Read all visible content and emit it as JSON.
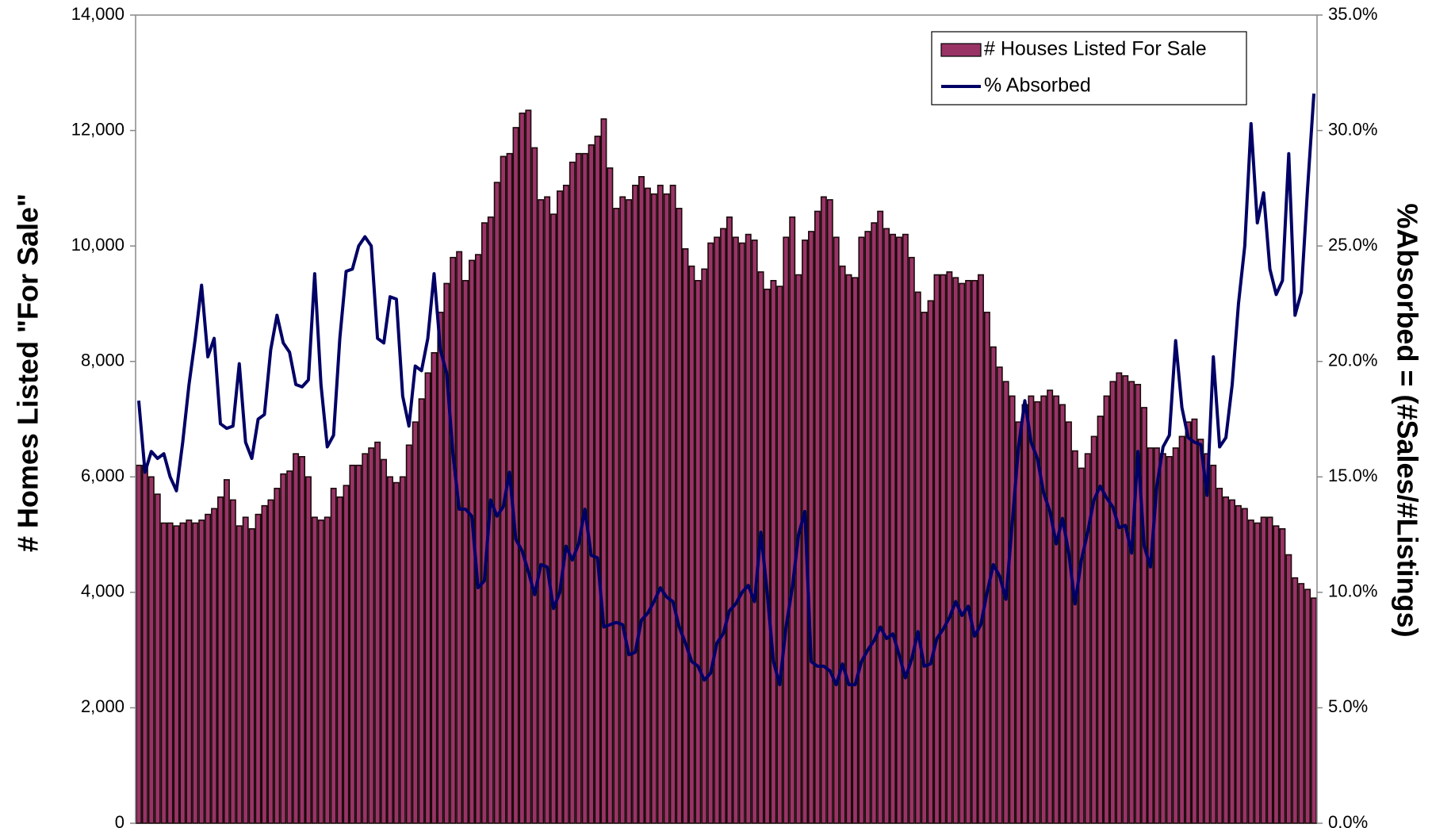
{
  "chart_data": {
    "type": "bar-line",
    "y_label": "# Homes Listed \"For Sale\"",
    "y2_label": "%Absorbed = (#Sales/#Listings)",
    "legend": "upper right",
    "ylim": [
      0,
      14000
    ],
    "yticks": [
      0,
      {
        "value": 2000,
        "label": "2,000"
      },
      {
        "value": 4000,
        "label": "4,000"
      },
      {
        "value": 6000,
        "label": "6,000"
      },
      {
        "value": 8000,
        "label": "8,000"
      },
      {
        "value": 10000,
        "label": "10,000"
      },
      {
        "value": 12000,
        "label": "12,000"
      },
      {
        "value": 14000,
        "label": "14,000"
      }
    ],
    "y2lim": [
      0,
      35
    ],
    "y2ticks": [
      {
        "value": 0,
        "label": "0.0%"
      },
      {
        "value": 5,
        "label": "5.0%"
      },
      {
        "value": 10,
        "label": "10.0%"
      },
      {
        "value": 15,
        "label": "15.0%"
      },
      {
        "value": 20,
        "label": "20.0%"
      },
      {
        "value": 25,
        "label": "25.0%"
      },
      {
        "value": 30,
        "label": "30.0%"
      },
      {
        "value": 35,
        "label": "35.0%"
      }
    ],
    "series": [
      {
        "name": "# Houses Listed For Sale",
        "type": "bar",
        "color": "#993366",
        "values": [
          6200,
          6200,
          6000,
          5700,
          5200,
          5200,
          5150,
          5200,
          5250,
          5200,
          5250,
          5350,
          5450,
          5650,
          5950,
          5600,
          5150,
          5300,
          5100,
          5350,
          5500,
          5600,
          5800,
          6050,
          6100,
          6400,
          6350,
          6000,
          5300,
          5250,
          5300,
          5800,
          5650,
          5850,
          6200,
          6200,
          6400,
          6500,
          6600,
          6300,
          6000,
          5900,
          6000,
          6550,
          6950,
          7350,
          7800,
          8150,
          8850,
          9350,
          9800,
          9900,
          9400,
          9750,
          9850,
          10400,
          10500,
          11100,
          11550,
          11600,
          12050,
          12300,
          12350,
          11700,
          10800,
          10850,
          10550,
          10950,
          11050,
          11450,
          11600,
          11600,
          11750,
          11900,
          12200,
          11350,
          10650,
          10850,
          10800,
          11050,
          11200,
          11000,
          10900,
          11050,
          10900,
          11050,
          10650,
          9950,
          9650,
          9400,
          9600,
          10050,
          10150,
          10300,
          10500,
          10150,
          10050,
          10200,
          10100,
          9550,
          9250,
          9400,
          9300,
          10150,
          10500,
          9500,
          10100,
          10250,
          10600,
          10850,
          10800,
          10150,
          9650,
          9500,
          9450,
          10150,
          10250,
          10400,
          10600,
          10300,
          10200,
          10150,
          10200,
          9800,
          9200,
          8850,
          9050,
          9500,
          9500,
          9550,
          9450,
          9350,
          9400,
          9400,
          9500,
          8850,
          8250,
          7900,
          7650,
          7400,
          6950,
          7250,
          7400,
          7300,
          7400,
          7500,
          7400,
          7250,
          6950,
          6450,
          6150,
          6400,
          6700,
          7050,
          7400,
          7650,
          7800,
          7750,
          7650,
          7600,
          7200,
          6500,
          6500,
          6400,
          6350,
          6500,
          6700,
          6950,
          7000,
          6650,
          6400,
          6200,
          5800,
          5650,
          5600,
          5500,
          5450,
          5250,
          5200,
          5300,
          5300,
          5150,
          5100,
          4650,
          4250,
          4150,
          4050,
          3900
        ]
      },
      {
        "name": "% Absorbed",
        "type": "line",
        "axis": "y2",
        "color": "#000066",
        "values": [
          18.3,
          15.2,
          16.1,
          15.8,
          16,
          15,
          14.4,
          16.5,
          19,
          21,
          23.3,
          20.2,
          21,
          17.3,
          17.1,
          17.2,
          19.9,
          16.5,
          15.8,
          17.5,
          17.7,
          20.5,
          22,
          20.8,
          20.4,
          19,
          18.9,
          19.2,
          23.8,
          19,
          16.3,
          16.8,
          21,
          23.9,
          24,
          25,
          25.4,
          25,
          21,
          20.8,
          22.8,
          22.7,
          18.5,
          17.2,
          19.8,
          19.6,
          21,
          23.8,
          20.5,
          19.5,
          16,
          13.6,
          13.6,
          13.3,
          10.2,
          10.5,
          14,
          13.3,
          13.7,
          15.2,
          12.3,
          11.8,
          10.9,
          9.9,
          11.2,
          11.1,
          9.3,
          10,
          12,
          11.4,
          12.1,
          13.6,
          11.6,
          11.5,
          8.5,
          8.6,
          8.7,
          8.6,
          7.3,
          7.4,
          8.8,
          9.1,
          9.6,
          10.2,
          9.8,
          9.6,
          8.5,
          7.8,
          7.0,
          6.8,
          6.2,
          6.5,
          7.8,
          8.2,
          9.2,
          9.5,
          10,
          10.3,
          9.6,
          12.6,
          10,
          7,
          6,
          8.5,
          10.2,
          12.5,
          13.5,
          7,
          6.8,
          6.8,
          6.6,
          6,
          6.9,
          6,
          6,
          7,
          7.5,
          7.9,
          8.5,
          8,
          8.2,
          7.3,
          6.3,
          7.1,
          8.3,
          6.8,
          6.9,
          8,
          8.4,
          8.9,
          9.6,
          9,
          9.4,
          8.1,
          8.6,
          10,
          11.2,
          10.7,
          9.7,
          13,
          16.3,
          18.3,
          16.5,
          15.8,
          14.3,
          13.5,
          12.1,
          13.2,
          11.7,
          9.5,
          11.4,
          12.6,
          14,
          14.6,
          14.1,
          13.7,
          12.8,
          12.9,
          11.7,
          16.1,
          12,
          11.1,
          14.6,
          16.3,
          16.8,
          20.9,
          18,
          16.7,
          16.5,
          16.4,
          14.2,
          20.2,
          16.3,
          16.7,
          19,
          22.5,
          25,
          30.3,
          26,
          27.3,
          24,
          22.9,
          23.5,
          29,
          22,
          23,
          27.5,
          31.6
        ]
      }
    ]
  }
}
